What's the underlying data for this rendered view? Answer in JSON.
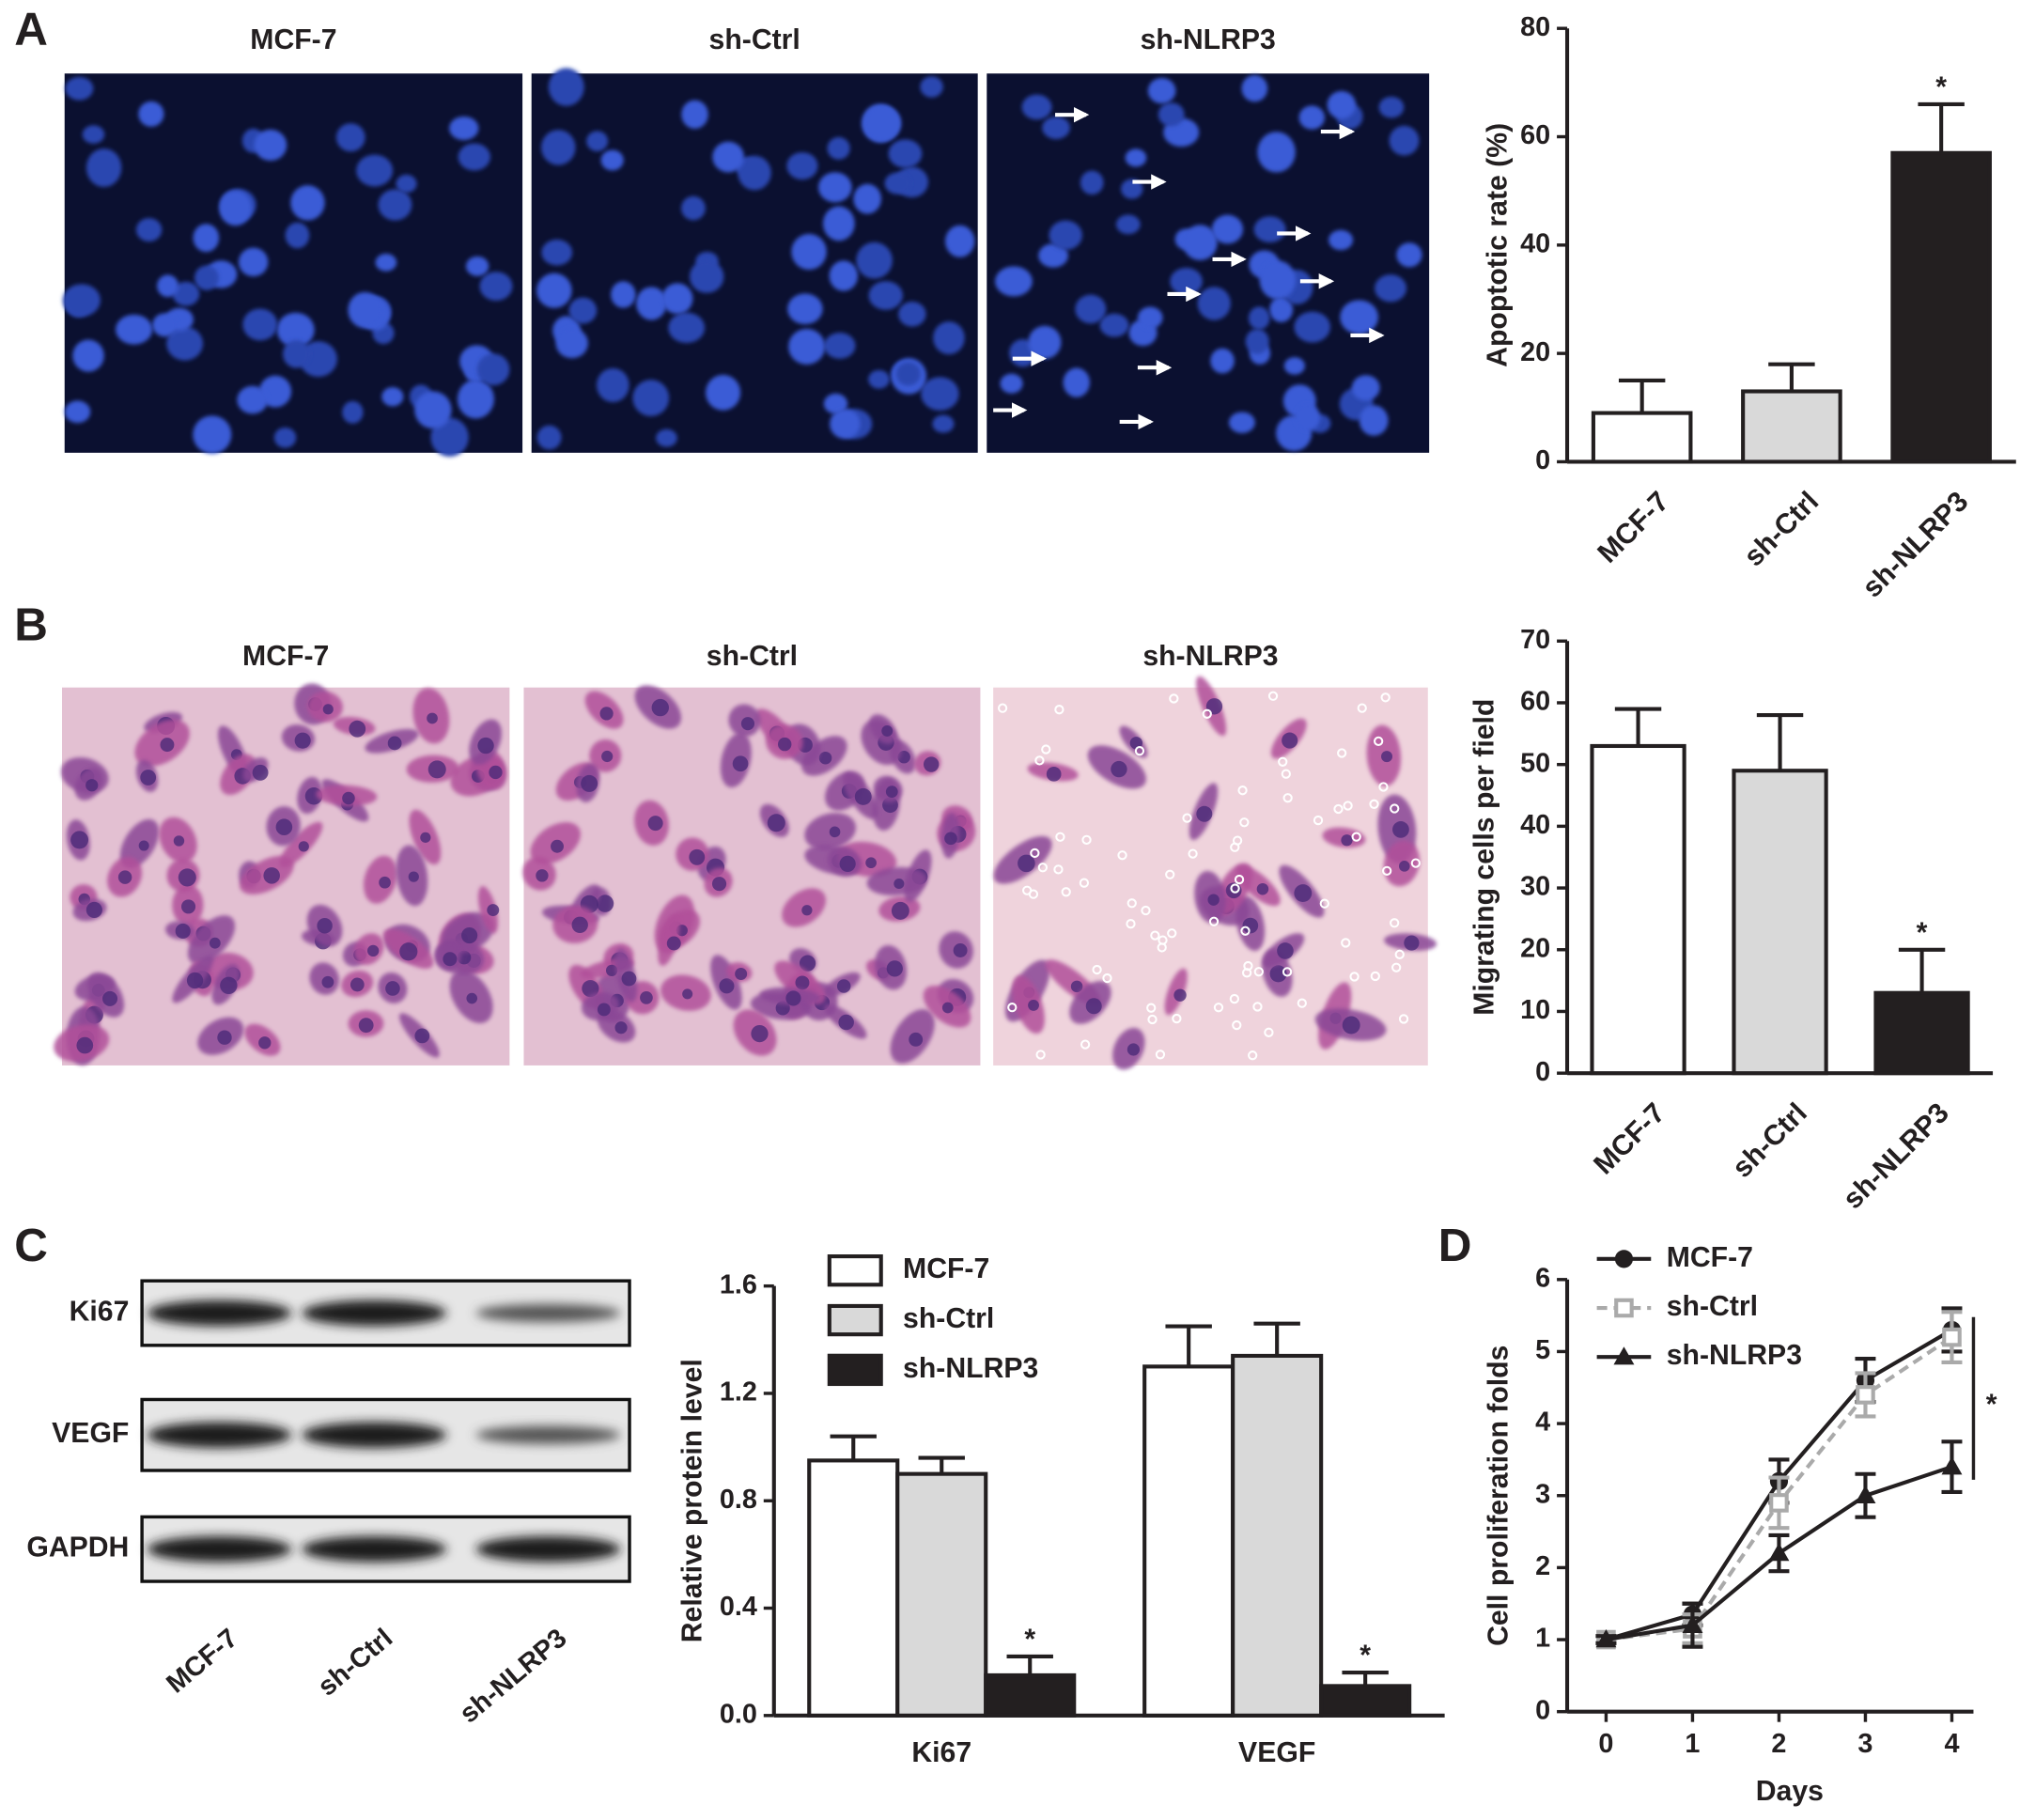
{
  "panel_labels": [
    "A",
    "B",
    "C",
    "D"
  ],
  "micrographs": [
    {
      "labels": [
        "MCF-7",
        "sh-Ctrl",
        "sh-NLRP3"
      ]
    },
    {
      "labels": [
        "MCF-7",
        "sh-Ctrl",
        "sh-NLRP3"
      ]
    }
  ],
  "western_blot": {
    "rows": [
      "Ki67",
      "VEGF",
      "GAPDH"
    ],
    "lanes": [
      "MCF-7",
      "sh-Ctrl",
      "sh-NLRP3"
    ]
  },
  "chart_data": [
    {
      "type": "bar",
      "y_label": "Apoptotic rate (%)",
      "categories": [
        "MCF-7",
        "sh-Ctrl",
        "sh-NLRP3"
      ],
      "values": [
        9,
        13,
        57
      ],
      "errors": [
        6,
        5,
        9
      ],
      "colors": [
        "#ffffff",
        "#d9d9d9",
        "#231f20"
      ],
      "annotations": [
        null,
        null,
        "*"
      ],
      "ylim": [
        0,
        80
      ],
      "yticks": [
        0,
        20,
        40,
        60,
        80
      ]
    },
    {
      "type": "bar",
      "y_label": "Migrating cells per field",
      "categories": [
        "MCF-7",
        "sh-Ctrl",
        "sh-NLRP3"
      ],
      "values": [
        53,
        49,
        13
      ],
      "errors": [
        6,
        9,
        7
      ],
      "colors": [
        "#ffffff",
        "#d9d9d9",
        "#231f20"
      ],
      "annotations": [
        null,
        null,
        "*"
      ],
      "ylim": [
        0,
        70
      ],
      "yticks": [
        0,
        10,
        20,
        30,
        40,
        50,
        60,
        70
      ]
    },
    {
      "type": "bar",
      "y_label": "Relative protein level",
      "categories": [
        "Ki67",
        "VEGF"
      ],
      "series": [
        {
          "name": "MCF-7",
          "color": "#ffffff",
          "values": [
            0.95,
            1.3
          ],
          "errors": [
            0.09,
            0.15
          ],
          "annotations": [
            null,
            null
          ]
        },
        {
          "name": "sh-Ctrl",
          "color": "#d9d9d9",
          "values": [
            0.9,
            1.34
          ],
          "errors": [
            0.06,
            0.12
          ],
          "annotations": [
            null,
            null
          ]
        },
        {
          "name": "sh-NLRP3",
          "color": "#231f20",
          "values": [
            0.15,
            0.11
          ],
          "errors": [
            0.07,
            0.05
          ],
          "annotations": [
            "*",
            "*"
          ]
        }
      ],
      "ylim": [
        0,
        1.6
      ],
      "yticks": [
        {
          "value": 0,
          "label": "0.0"
        },
        0.4,
        0.8,
        1.2,
        1.6
      ]
    },
    {
      "type": "line",
      "x_label": "Days",
      "y_label": "Cell proliferation folds",
      "x": [
        0,
        1,
        2,
        3,
        4
      ],
      "series": [
        {
          "name": "MCF-7",
          "color": "#231f20",
          "marker": "circle",
          "linestyle": "solid",
          "values": [
            1,
            1.35,
            3.2,
            4.6,
            5.3
          ],
          "errors": [
            0.05,
            0.15,
            0.3,
            0.3,
            0.3
          ]
        },
        {
          "name": "sh-Ctrl",
          "color": "#aaaaaa",
          "marker": "open-square",
          "linestyle": "dashed",
          "values": [
            1,
            1.15,
            2.9,
            4.4,
            5.2
          ],
          "errors": [
            0.05,
            0.2,
            0.35,
            0.3,
            0.35
          ]
        },
        {
          "name": "sh-NLRP3",
          "color": "#231f20",
          "marker": "triangle",
          "linestyle": "solid",
          "values": [
            1,
            1.2,
            2.2,
            3.0,
            3.4
          ],
          "errors": [
            0.05,
            0.3,
            0.25,
            0.3,
            0.35
          ]
        }
      ],
      "bracket_label": "*",
      "xlim": [
        -0.45,
        4.25
      ],
      "xticks": [
        0,
        1,
        2,
        3,
        4
      ],
      "ylim": [
        0,
        6
      ],
      "yticks": [
        0,
        1,
        2,
        3,
        4,
        5,
        6
      ]
    }
  ]
}
